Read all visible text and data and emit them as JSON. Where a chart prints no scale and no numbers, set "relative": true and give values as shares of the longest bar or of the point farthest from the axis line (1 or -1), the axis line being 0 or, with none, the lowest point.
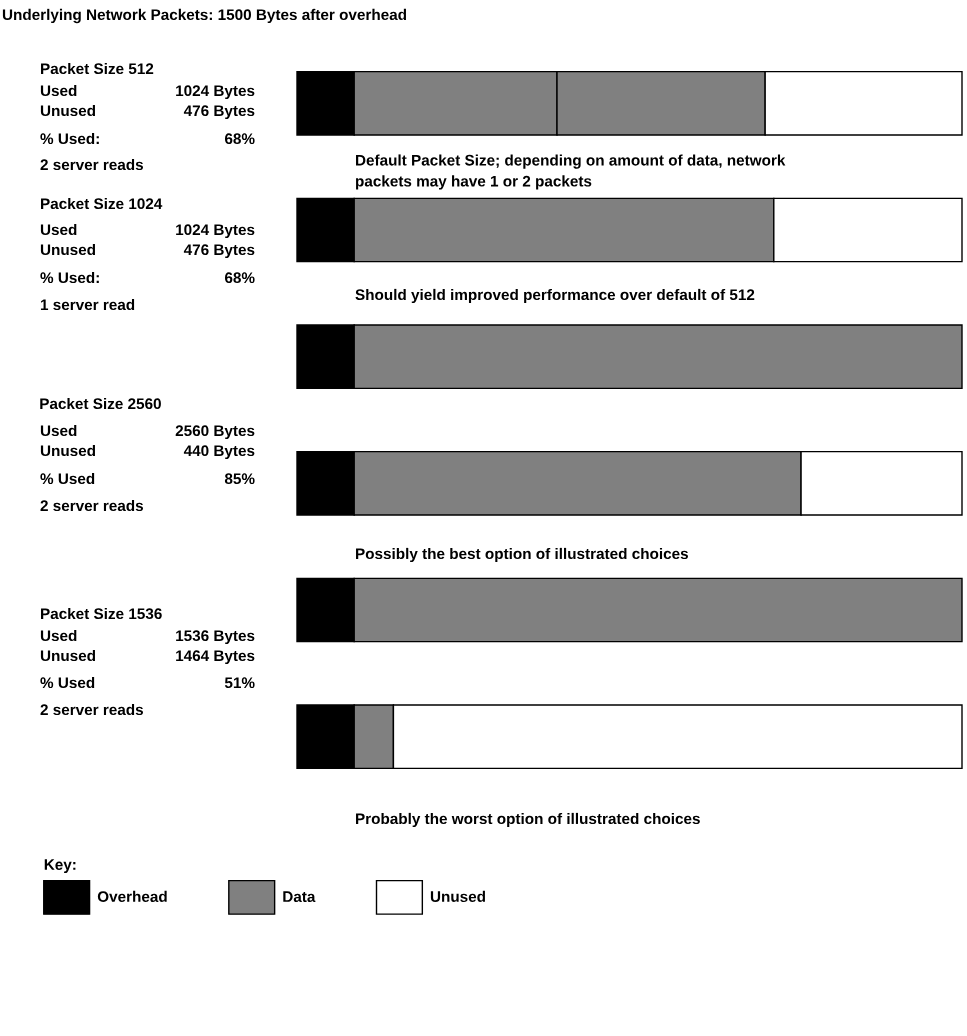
{
  "chart_data": {
    "type": "bar",
    "orientation": "horizontal",
    "stacked": true,
    "relative": true,
    "title": "Underlying Network Packets: 1500 Bytes after overhead",
    "legend_title": "Key:",
    "legend": "bottom left",
    "categories": [
      null,
      null,
      null,
      null,
      null,
      null
    ],
    "series": [
      {
        "name": "Overhead",
        "color": "#000000",
        "values": [
          0.086,
          0.086,
          0.086,
          0.086,
          0.086,
          0.086
        ]
      },
      {
        "name": "Data",
        "color": "#808080",
        "values": [
          0.305,
          0.631,
          0.914,
          0.672,
          0.914,
          0.059
        ]
      },
      {
        "color": "#808080",
        "values": [
          0.313,
          null,
          null,
          null,
          null,
          null
        ]
      },
      {
        "name": "Unused",
        "color": "#ffffff",
        "values": [
          0.296,
          0.283,
          null,
          0.242,
          null,
          0.855
        ]
      }
    ],
    "annotations": [
      "Packet Size 512",
      "Used",
      "1024 Bytes",
      "Unused",
      "476 Bytes",
      "% Used:",
      "68%",
      "2 server reads",
      "Default Packet Size; depending on amount of data, network\npackets may have 1 or 2 packets",
      "Packet Size 1024",
      "Used",
      "1024 Bytes",
      "Unused",
      "476 Bytes",
      "% Used:",
      "68%",
      "1 server read",
      "Should yield improved performance over default of 512",
      " Packet Size 2560",
      "Used",
      "2560 Bytes",
      "Unused",
      "440 Bytes",
      "% Used",
      "85%",
      "2 server reads",
      "Possibly the best option of illustrated choices",
      "Packet Size 1536",
      "Used",
      "1536 Bytes",
      "Unused",
      "1464 Bytes",
      "% Used",
      "51%",
      "2 server reads",
      "Probably the worst option of illustrated choices"
    ]
  }
}
